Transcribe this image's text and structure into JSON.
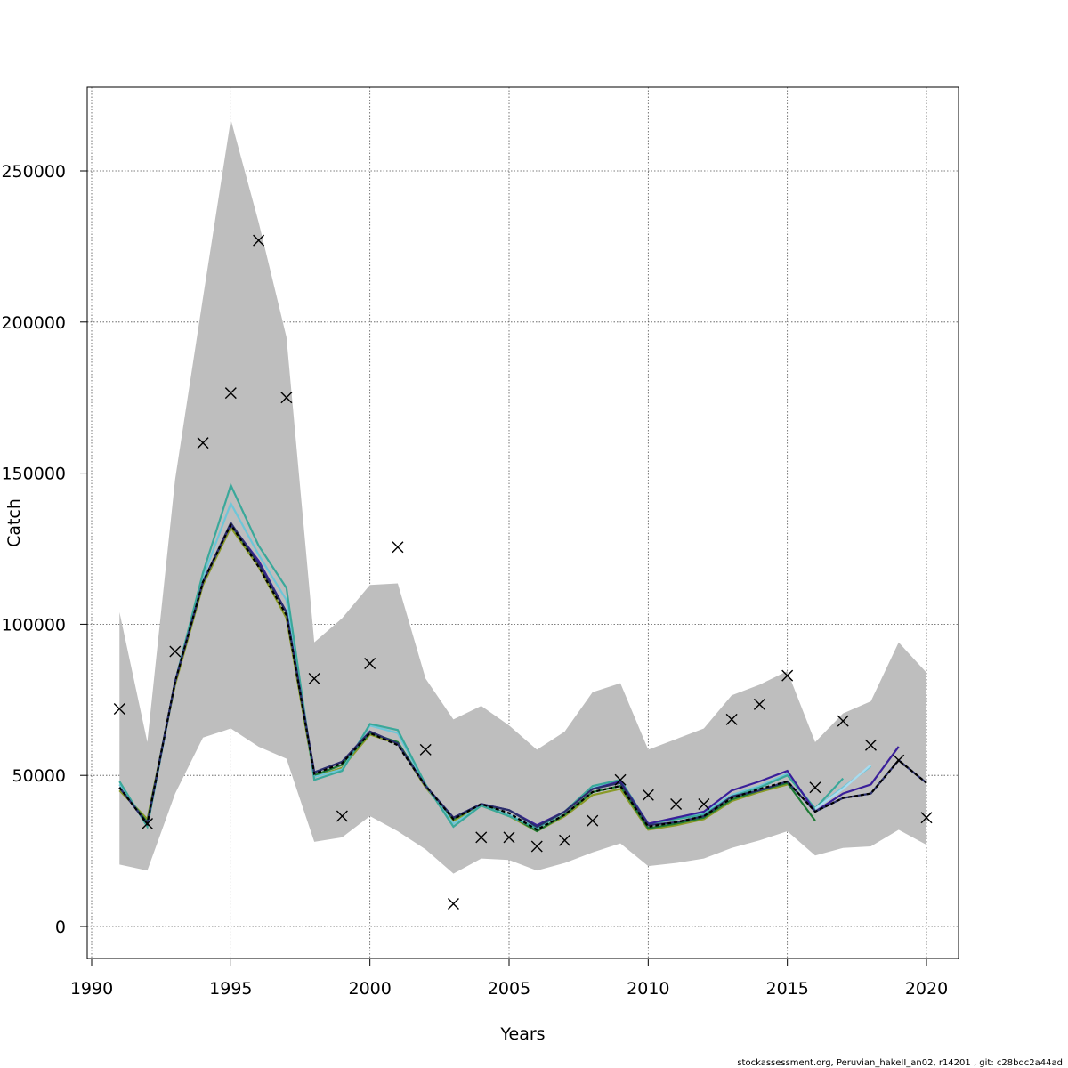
{
  "chart_data": {
    "type": "line",
    "xlabel": "Years",
    "ylabel": "Catch",
    "xlim": [
      1990,
      2021
    ],
    "ylim": [
      -10000,
      278000
    ],
    "x_ticks": [
      1990,
      1995,
      2000,
      2005,
      2010,
      2015,
      2020
    ],
    "y_ticks": [
      0,
      50000,
      100000,
      150000,
      200000,
      250000
    ],
    "grid": true,
    "footer": "stockassessment.org, Peruvian_hakeII_an02, r14201 , git: c28bdc2a44ad",
    "colors": {
      "band": "#bebebe",
      "main": "#000000",
      "navy": "#2b2f6b",
      "blue": "#3a1f9a",
      "teal": "#3aa89a",
      "cyan": "#6ec6d8",
      "lightblue": "#a8dcf0",
      "green": "#1e7a34",
      "olive": "#8a9a28"
    },
    "years": [
      1991,
      1992,
      1993,
      1994,
      1995,
      1996,
      1997,
      1998,
      1999,
      2000,
      2001,
      2002,
      2003,
      2004,
      2005,
      2006,
      2007,
      2008,
      2009,
      2010,
      2011,
      2012,
      2013,
      2014,
      2015,
      2016,
      2017,
      2018,
      2019,
      2020
    ],
    "ci_upper": [
      104000,
      61000,
      148000,
      208000,
      267000,
      233000,
      195000,
      94000,
      102000,
      113000,
      113500,
      82000,
      68500,
      73000,
      66500,
      58500,
      64500,
      77500,
      80500,
      58500,
      62000,
      65500,
      76500,
      80000,
      84500,
      61000,
      70500,
      74500,
      94000,
      84000
    ],
    "ci_lower": [
      20500,
      18500,
      44000,
      62500,
      65500,
      59500,
      55500,
      28000,
      29500,
      36500,
      31500,
      25500,
      17500,
      22500,
      22000,
      18500,
      21000,
      24500,
      27500,
      20000,
      21000,
      22500,
      26000,
      28500,
      31500,
      23500,
      26000,
      26500,
      32000,
      27000
    ],
    "observed": [
      72000,
      34000,
      91000,
      160000,
      176500,
      227000,
      175000,
      82000,
      36500,
      87000,
      125500,
      58500,
      7500,
      29500,
      29500,
      26500,
      28500,
      35000,
      48500,
      43500,
      40500,
      40500,
      68500,
      73500,
      83000,
      46000,
      68000,
      60000,
      55000,
      36000
    ],
    "series": [
      {
        "key": "main",
        "dashed": true,
        "start": 1991,
        "values": [
          46000,
          34000,
          81000,
          114000,
          133000,
          119000,
          103000,
          50500,
          54000,
          64000,
          60000,
          46500,
          35500,
          40500,
          37500,
          32000,
          37000,
          44500,
          46500,
          33000,
          34500,
          36500,
          42500,
          45500,
          48000,
          38000,
          42500,
          44000,
          55000,
          47500
        ]
      },
      {
        "key": "navy",
        "dashed": false,
        "start": 1991,
        "values": [
          46000,
          34000,
          81000,
          114000,
          133500,
          120000,
          104000,
          51000,
          54500,
          64500,
          60500,
          46500,
          36000,
          40500,
          38500,
          33000,
          38000,
          45500,
          47500,
          33500,
          34500,
          36500,
          43000,
          45000,
          48000,
          38000,
          42500,
          44000,
          55000,
          47500
        ]
      },
      {
        "key": "teal",
        "dashed": false,
        "start": 1991,
        "values": [
          48000,
          33000,
          81000,
          117000,
          146000,
          126000,
          112000,
          48500,
          51500,
          67000,
          65000,
          47000,
          33000,
          40000,
          36500,
          32500,
          38000,
          46500,
          48500,
          34000,
          35500,
          37000,
          43000,
          46000,
          50000,
          39000,
          49000
        ]
      },
      {
        "key": "cyan",
        "dashed": false,
        "start": 1991,
        "values": [
          47000,
          33500,
          81000,
          115500,
          140000,
          123000,
          108000,
          49500,
          52000,
          66500,
          64000,
          46500,
          34000,
          40000,
          37000,
          32500,
          38000,
          46000,
          48000,
          34000,
          35500,
          37500,
          43500,
          46500,
          50500,
          39000,
          46000,
          53000
        ]
      },
      {
        "key": "lightblue",
        "dashed": false,
        "start": 2016,
        "values": [
          39000,
          45500,
          53500
        ]
      },
      {
        "key": "blue",
        "dashed": false,
        "start": 1991,
        "values": [
          46000,
          34000,
          81000,
          114000,
          133000,
          121000,
          104000,
          51000,
          54500,
          64500,
          60500,
          46500,
          36000,
          40500,
          38500,
          33500,
          38000,
          45500,
          48000,
          34000,
          36000,
          38000,
          45000,
          48000,
          51500,
          38000,
          44000,
          47000,
          59500
        ]
      },
      {
        "key": "green",
        "dashed": false,
        "start": 1991,
        "values": [
          46000,
          34500,
          81000,
          114000,
          133000,
          120000,
          104000,
          50000,
          53500,
          64000,
          61000,
          46500,
          35500,
          40500,
          37000,
          31500,
          37000,
          44500,
          46500,
          32500,
          34000,
          36000,
          42000,
          45000,
          47500,
          35000
        ]
      },
      {
        "key": "olive",
        "dashed": false,
        "start": 1991,
        "values": [
          45000,
          35500,
          80000,
          113000,
          132000,
          119000,
          102000,
          49500,
          52500,
          63500,
          60500,
          46000,
          35000,
          40000,
          36500,
          31500,
          36500,
          43500,
          45500,
          32000,
          33500,
          35500,
          41500,
          44500,
          47000
        ]
      }
    ]
  }
}
